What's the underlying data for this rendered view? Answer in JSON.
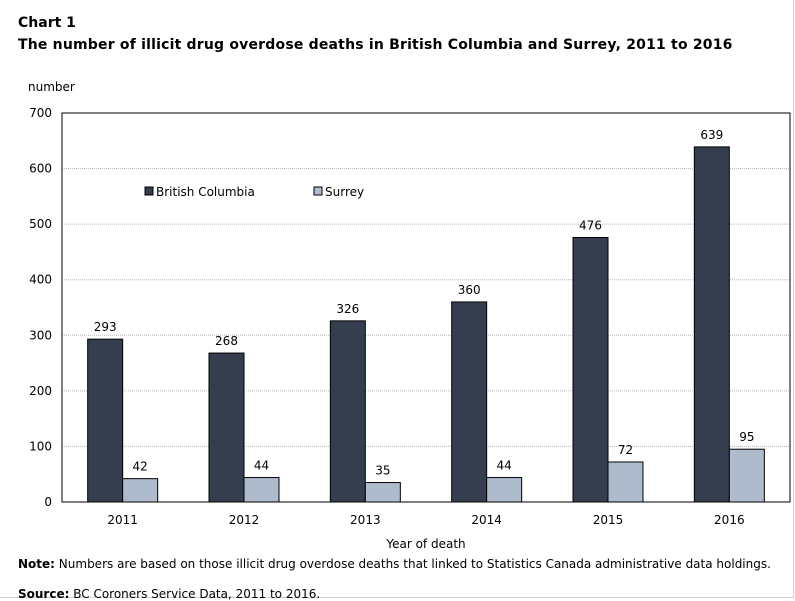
{
  "chart_label": "Chart 1",
  "chart_title": "The number of illicit drug overdose deaths in British Columbia and Surrey, 2011 to 2016",
  "note_label": "Note:",
  "note_text": "Numbers are based on those illicit drug overdose deaths that linked to Statistics Canada administrative data holdings.",
  "source_label": "Source:",
  "source_text": "BC Coroners Service Data, 2011 to 2016.",
  "colors": {
    "british_columbia": "#343e4e",
    "surrey": "#aebbcc",
    "bar_outline": "#000000",
    "grid": "#b8b8b8"
  },
  "chart_data": {
    "type": "bar",
    "title": "The number of illicit drug overdose deaths in British Columbia and Surrey, 2011 to 2016",
    "xlabel": "Year of death",
    "ylabel": "number",
    "categories": [
      "2011",
      "2012",
      "2013",
      "2014",
      "2015",
      "2016"
    ],
    "series": [
      {
        "name": "British Columbia",
        "values": [
          293,
          268,
          326,
          360,
          476,
          639
        ]
      },
      {
        "name": "Surrey",
        "values": [
          42,
          44,
          35,
          44,
          72,
          95
        ]
      }
    ],
    "ylim": [
      0,
      700
    ],
    "yticks": [
      0,
      100,
      200,
      300,
      400,
      500,
      600,
      700
    ],
    "grid": true,
    "legend_position": "top-left inside plot",
    "data_labels": true
  }
}
